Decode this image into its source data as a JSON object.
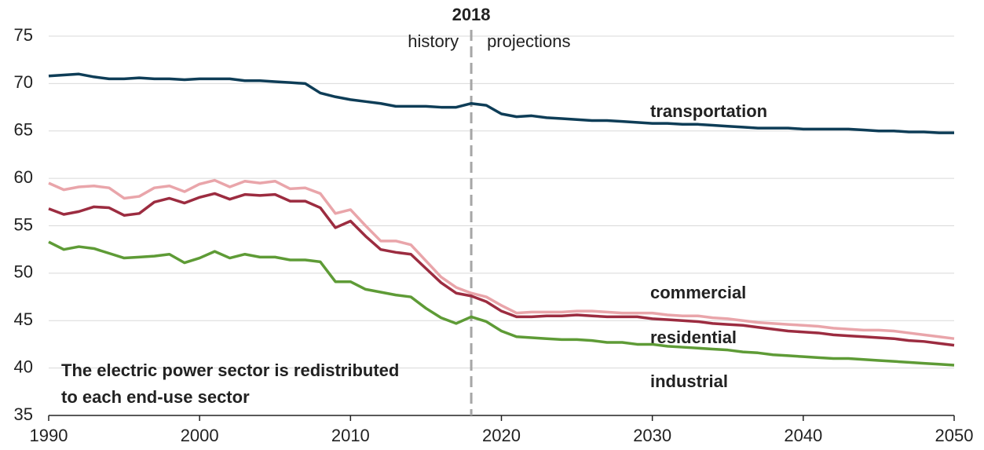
{
  "chart_data": {
    "type": "line",
    "x": [
      1990,
      1991,
      1992,
      1993,
      1994,
      1995,
      1996,
      1997,
      1998,
      1999,
      2000,
      2001,
      2002,
      2003,
      2004,
      2005,
      2006,
      2007,
      2008,
      2009,
      2010,
      2011,
      2012,
      2013,
      2014,
      2015,
      2016,
      2017,
      2018,
      2019,
      2020,
      2021,
      2022,
      2023,
      2024,
      2025,
      2026,
      2027,
      2028,
      2029,
      2030,
      2031,
      2032,
      2033,
      2034,
      2035,
      2036,
      2037,
      2038,
      2039,
      2040,
      2041,
      2042,
      2043,
      2044,
      2045,
      2046,
      2047,
      2048,
      2049,
      2050
    ],
    "series": [
      {
        "name": "transportation",
        "color": "#0e3d57",
        "values": [
          70.8,
          70.9,
          71.0,
          70.7,
          70.5,
          70.5,
          70.6,
          70.5,
          70.5,
          70.4,
          70.5,
          70.5,
          70.5,
          70.3,
          70.3,
          70.2,
          70.1,
          70.0,
          69.0,
          68.6,
          68.3,
          68.1,
          67.9,
          67.6,
          67.6,
          67.6,
          67.5,
          67.5,
          67.9,
          67.7,
          66.8,
          66.5,
          66.6,
          66.4,
          66.3,
          66.2,
          66.1,
          66.1,
          66.0,
          65.9,
          65.8,
          65.8,
          65.7,
          65.7,
          65.6,
          65.5,
          65.4,
          65.3,
          65.3,
          65.3,
          65.2,
          65.2,
          65.2,
          65.2,
          65.1,
          65.0,
          65.0,
          64.9,
          64.9,
          64.8,
          64.8
        ]
      },
      {
        "name": "commercial",
        "color": "#e9a5aa",
        "values": [
          59.5,
          58.8,
          59.1,
          59.2,
          59.0,
          57.9,
          58.1,
          59.0,
          59.2,
          58.6,
          59.4,
          59.8,
          59.1,
          59.7,
          59.5,
          59.7,
          58.9,
          59.0,
          58.4,
          56.3,
          56.7,
          55.0,
          53.4,
          53.4,
          53.0,
          51.3,
          49.6,
          48.5,
          47.9,
          47.5,
          46.6,
          45.8,
          45.9,
          45.9,
          45.9,
          46.0,
          46.0,
          45.9,
          45.8,
          45.8,
          45.8,
          45.6,
          45.5,
          45.5,
          45.3,
          45.2,
          45.0,
          44.8,
          44.7,
          44.6,
          44.5,
          44.4,
          44.2,
          44.1,
          44.0,
          44.0,
          43.9,
          43.7,
          43.5,
          43.3,
          43.1
        ]
      },
      {
        "name": "residential",
        "color": "#9c2c40",
        "values": [
          56.8,
          56.2,
          56.5,
          57.0,
          56.9,
          56.1,
          56.3,
          57.5,
          57.9,
          57.4,
          58.0,
          58.4,
          57.8,
          58.3,
          58.2,
          58.3,
          57.6,
          57.6,
          56.9,
          54.8,
          55.5,
          53.9,
          52.5,
          52.2,
          52.0,
          50.5,
          49.0,
          47.9,
          47.6,
          47.0,
          46.0,
          45.4,
          45.4,
          45.5,
          45.5,
          45.6,
          45.5,
          45.4,
          45.4,
          45.4,
          45.2,
          45.1,
          45.0,
          44.9,
          44.7,
          44.6,
          44.5,
          44.3,
          44.1,
          43.9,
          43.8,
          43.7,
          43.5,
          43.4,
          43.3,
          43.2,
          43.1,
          42.9,
          42.8,
          42.6,
          42.4
        ]
      },
      {
        "name": "industrial",
        "color": "#5e9b36",
        "values": [
          53.3,
          52.5,
          52.8,
          52.6,
          52.1,
          51.6,
          51.7,
          51.8,
          52.0,
          51.1,
          51.6,
          52.3,
          51.6,
          52.0,
          51.7,
          51.7,
          51.4,
          51.4,
          51.2,
          49.1,
          49.1,
          48.3,
          48.0,
          47.7,
          47.5,
          46.3,
          45.3,
          44.7,
          45.4,
          44.9,
          43.9,
          43.3,
          43.2,
          43.1,
          43.0,
          43.0,
          42.9,
          42.7,
          42.7,
          42.5,
          42.5,
          42.3,
          42.2,
          42.1,
          42.0,
          41.9,
          41.7,
          41.6,
          41.4,
          41.3,
          41.2,
          41.1,
          41.0,
          41.0,
          40.9,
          40.8,
          40.7,
          40.6,
          40.5,
          40.4,
          40.3
        ]
      }
    ],
    "xlim": [
      1990,
      2050
    ],
    "xticks": [
      1990,
      2000,
      2010,
      2020,
      2030,
      2040,
      2050
    ],
    "ylim": [
      35,
      75
    ],
    "yticks": [
      35,
      40,
      45,
      50,
      55,
      60,
      65,
      70,
      75
    ],
    "grid": true,
    "divider": {
      "x": 2018,
      "label": "2018",
      "left": "history",
      "right": "projections"
    },
    "note": [
      "The electric power sector is redistributed",
      "to each end-use sector"
    ],
    "note_color": "#e9b17f"
  }
}
